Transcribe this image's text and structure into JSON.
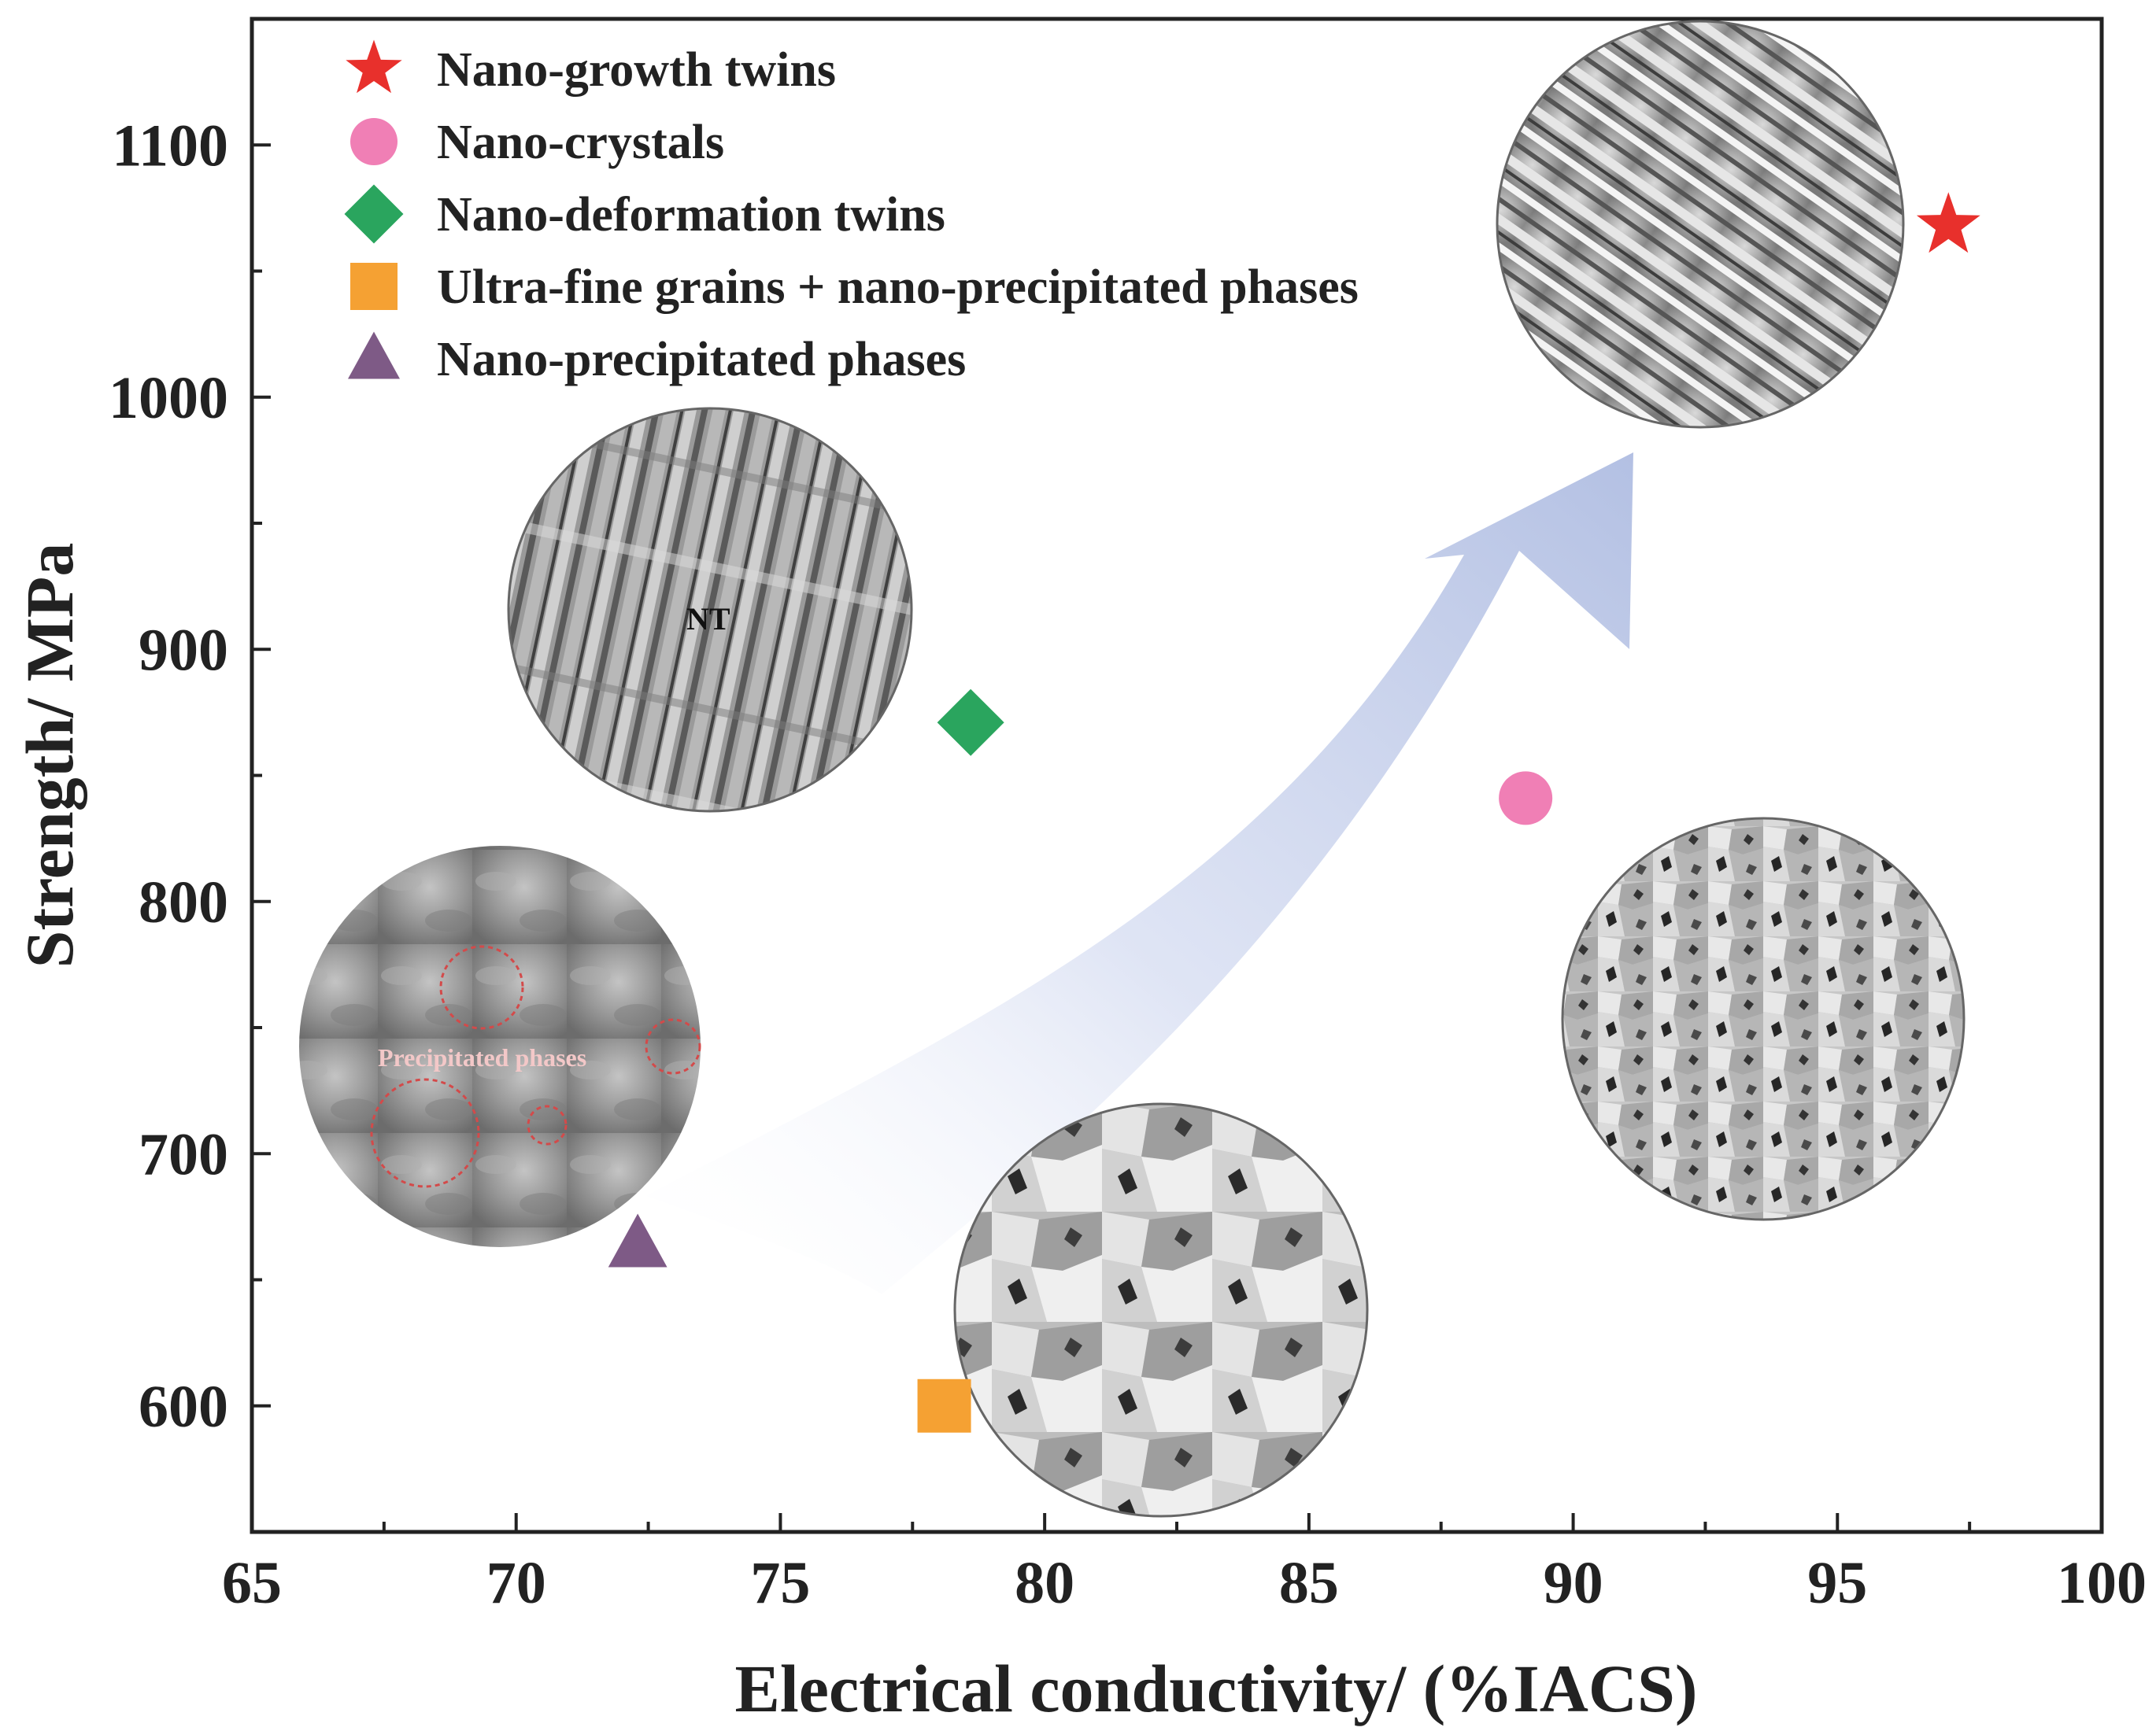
{
  "chart_data": {
    "type": "scatter",
    "title": "",
    "xlabel": "Electrical conductivity/ (%IACS)",
    "ylabel": "Strength/ MPa",
    "xlim": [
      65,
      100
    ],
    "ylim": [
      550,
      1150
    ],
    "x_ticks": [
      65,
      70,
      75,
      80,
      85,
      90,
      95,
      100
    ],
    "x_tick_labels": [
      "65",
      "70",
      "75",
      "80",
      "85",
      "90",
      "95",
      "100"
    ],
    "y_ticks": [
      600,
      700,
      800,
      900,
      1000,
      1100
    ],
    "y_tick_labels": [
      "600",
      "700",
      "800",
      "900",
      "1000",
      "1100"
    ],
    "grid": false,
    "legend_position": "top-left",
    "series": [
      {
        "name": "Nano-growth twins",
        "marker": "star",
        "color": "#e8302c",
        "x": [
          97.1
        ],
        "y": [
          1068
        ]
      },
      {
        "name": "Nano-crystals",
        "marker": "circle",
        "color": "#f07fb5",
        "x": [
          89.1
        ],
        "y": [
          841
        ]
      },
      {
        "name": "Nano-deformation twins",
        "marker": "diamond",
        "color": "#2aa55e",
        "x": [
          78.6
        ],
        "y": [
          871
        ]
      },
      {
        "name": "Ultra-fine grains + nano-precipitated phases",
        "marker": "square",
        "color": "#f5a133",
        "x": [
          78.1
        ],
        "y": [
          600
        ]
      },
      {
        "name": "Nano-precipitated phases",
        "marker": "triangle",
        "color": "#7e5a86",
        "x": [
          72.3
        ],
        "y": [
          664
        ]
      }
    ],
    "annotations": [
      {
        "type": "inset-image",
        "id": "nano-growth-twins",
        "text": ""
      },
      {
        "type": "inset-image",
        "id": "nano-deformation-twins",
        "text": "NT"
      },
      {
        "type": "inset-image",
        "id": "nano-precipitated-phases",
        "text": "Precipitated phases"
      },
      {
        "type": "inset-image",
        "id": "ultra-fine-grains",
        "text": ""
      },
      {
        "type": "inset-image",
        "id": "nano-crystals",
        "text": ""
      },
      {
        "type": "arrow",
        "direction": "lower-left to upper-right",
        "color": "#b7c3e4"
      }
    ]
  }
}
